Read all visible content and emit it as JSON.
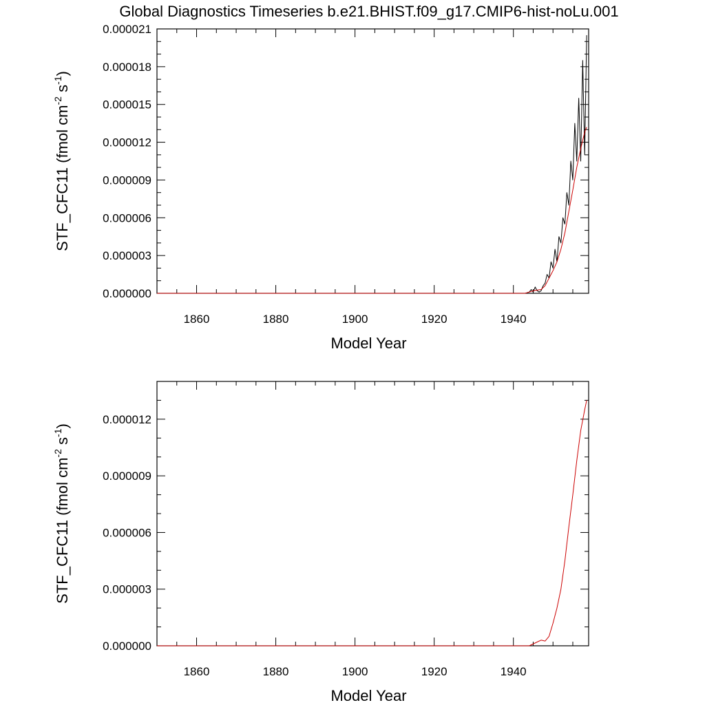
{
  "title": "Global Diagnostics Timeseries b.e21.BHIST.f09_g17.CMIP6-hist-noLu.001",
  "chart_data": [
    {
      "type": "line",
      "xlabel": "Model Year",
      "ylabel": {
        "base": "STF_CFC11 (fmol cm",
        "sup1": "-2",
        "mid": " s",
        "sup2": "-1",
        "end": ")"
      },
      "xlim": [
        1850,
        1959
      ],
      "ylim": [
        0,
        2.1e-05
      ],
      "x_ticks": [
        1860,
        1880,
        1900,
        1920,
        1940
      ],
      "x_tick_labels": [
        "1860",
        "1880",
        "1900",
        "1920",
        "1940"
      ],
      "y_ticks": [
        0,
        3e-06,
        6e-06,
        9e-06,
        1.2e-05,
        1.5e-05,
        1.8e-05,
        2.1e-05
      ],
      "y_tick_labels": [
        "0.000000",
        "0.000003",
        "0.000006",
        "0.000009",
        "0.000012",
        "0.000015",
        "0.000018",
        "0.000021"
      ],
      "grid": false,
      "series": [
        {
          "color": "#000000",
          "x": [
            1850,
            1940,
            1943,
            1944,
            1944.5,
            1945,
            1945.5,
            1946,
            1946.5,
            1947,
            1947.5,
            1948,
            1948.5,
            1949,
            1949.5,
            1950,
            1950.5,
            1951,
            1951.5,
            1952,
            1952.5,
            1953,
            1953.5,
            1954,
            1954.5,
            1955,
            1955.5,
            1956,
            1956.5,
            1957,
            1957.5,
            1958,
            1958.5
          ],
          "y": [
            0,
            0,
            0,
            1e-07,
            3e-07,
            1e-07,
            5e-07,
            2e-07,
            1e-07,
            2e-07,
            6e-07,
            8e-07,
            1.5e-06,
            1.2e-06,
            2.5e-06,
            2e-06,
            3.5e-06,
            2.5e-06,
            4.5e-06,
            4e-06,
            6e-06,
            5.5e-06,
            8e-06,
            7e-06,
            1.05e-05,
            9e-06,
            1.35e-05,
            1.05e-05,
            1.55e-05,
            1.05e-05,
            1.85e-05,
            1.1e-05,
            2.05e-05
          ]
        },
        {
          "color": "#cc0000",
          "x": [
            1850,
            1940,
            1943,
            1944,
            1945,
            1946,
            1947,
            1948,
            1949,
            1950,
            1951,
            1952,
            1953,
            1954,
            1955,
            1956,
            1957,
            1958,
            1958.5
          ],
          "y": [
            0,
            0,
            0,
            1e-07,
            2e-07,
            2.5e-07,
            3e-07,
            6e-07,
            1.2e-06,
            1.8e-06,
            2.5e-06,
            3.5e-06,
            4.8e-06,
            6.5e-06,
            8.2e-06,
            1e-05,
            1.15e-05,
            1.28e-05,
            1.32e-05
          ]
        }
      ]
    },
    {
      "type": "line",
      "xlabel": "Model Year",
      "ylabel": {
        "base": "STF_CFC11 (fmol cm",
        "sup1": "-2",
        "mid": " s",
        "sup2": "-1",
        "end": ")"
      },
      "xlim": [
        1850,
        1959
      ],
      "ylim": [
        0,
        1.4e-05
      ],
      "x_ticks": [
        1860,
        1880,
        1900,
        1920,
        1940
      ],
      "x_tick_labels": [
        "1860",
        "1880",
        "1900",
        "1920",
        "1940"
      ],
      "y_ticks": [
        0,
        3e-06,
        6e-06,
        9e-06,
        1.2e-05
      ],
      "y_tick_labels": [
        "0.000000",
        "0.000003",
        "0.000006",
        "0.000009",
        "0.000012"
      ],
      "grid": false,
      "series": [
        {
          "color": "#cc0000",
          "x": [
            1850,
            1940,
            1944,
            1945,
            1946,
            1947,
            1948,
            1949,
            1950,
            1951,
            1952,
            1953,
            1954,
            1955,
            1956,
            1957,
            1958,
            1958.5
          ],
          "y": [
            0,
            0,
            0,
            1e-07,
            2e-07,
            3e-07,
            2.5e-07,
            5e-07,
            1.2e-06,
            2e-06,
            3e-06,
            4.5e-06,
            6.3e-06,
            8e-06,
            9.8e-06,
            1.14e-05,
            1.25e-05,
            1.3e-05
          ]
        }
      ]
    }
  ]
}
